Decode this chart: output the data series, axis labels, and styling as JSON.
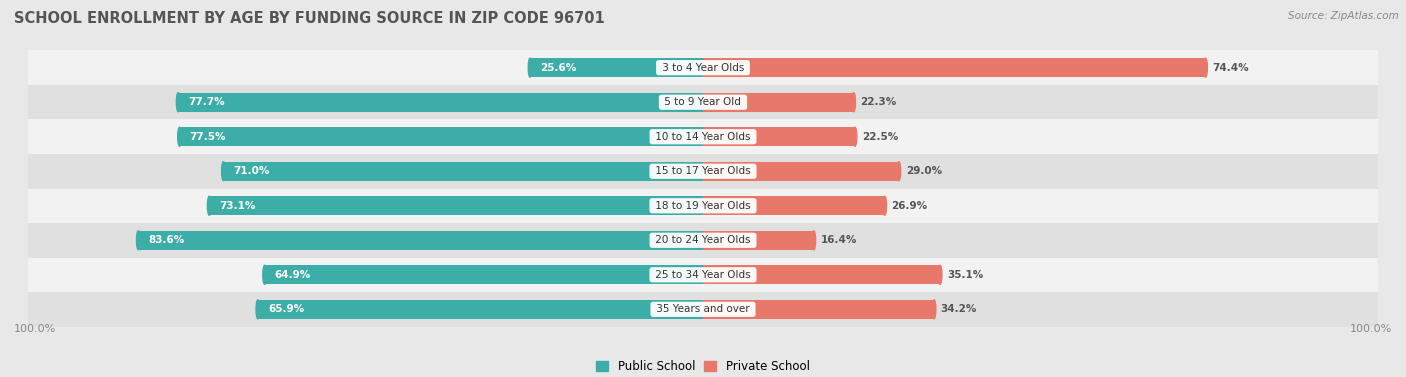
{
  "title": "School Enrollment by Age by Funding Source in Zip Code 96701",
  "source": "Source: ZipAtlas.com",
  "categories": [
    "3 to 4 Year Olds",
    "5 to 9 Year Old",
    "10 to 14 Year Olds",
    "15 to 17 Year Olds",
    "18 to 19 Year Olds",
    "20 to 24 Year Olds",
    "25 to 34 Year Olds",
    "35 Years and over"
  ],
  "public_values": [
    25.6,
    77.7,
    77.5,
    71.0,
    73.1,
    83.6,
    64.9,
    65.9
  ],
  "private_values": [
    74.4,
    22.3,
    22.5,
    29.0,
    26.9,
    16.4,
    35.1,
    34.2
  ],
  "public_color": "#3DADA8",
  "private_color": "#E8796A",
  "background_color": "#e8e8e8",
  "row_colors": [
    "#f2f2f2",
    "#e0e0e0"
  ],
  "title_fontsize": 10.5,
  "label_fontsize": 7.5,
  "legend_fontsize": 8.5,
  "bar_label_fontsize": 7.5,
  "axis_label_fontsize": 8,
  "x_left_label": "100.0%",
  "x_right_label": "100.0%",
  "total_width": 100
}
